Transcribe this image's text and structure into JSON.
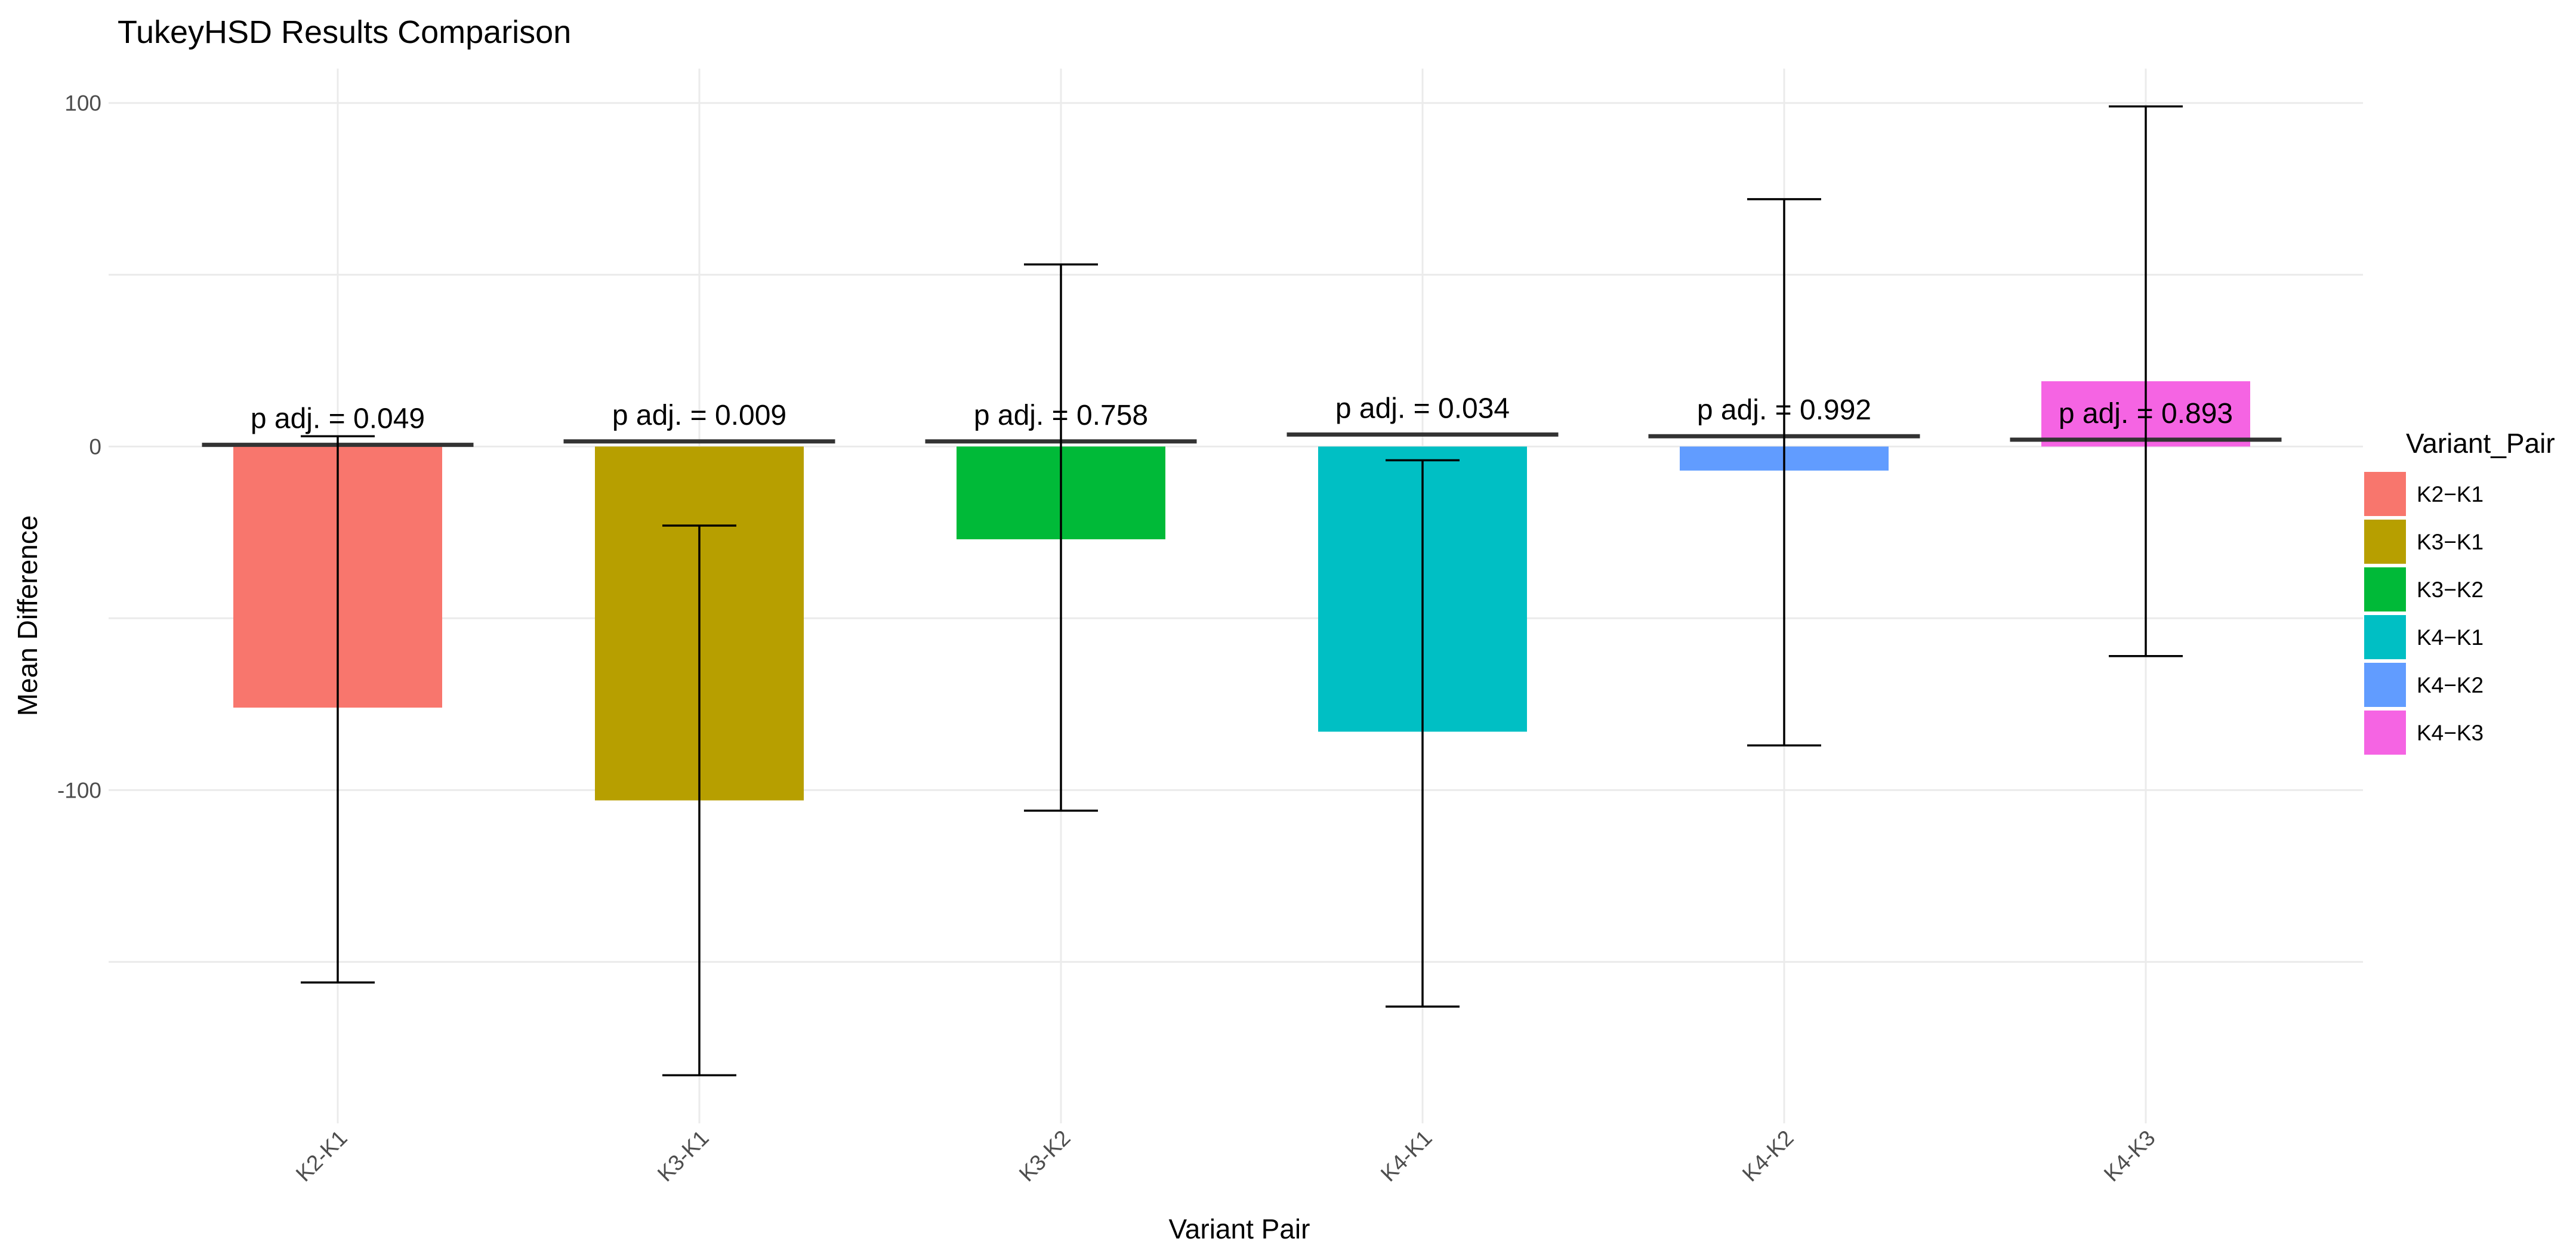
{
  "chart_data": {
    "type": "bar",
    "title": "TukeyHSD Results Comparison",
    "xlabel": "Variant Pair",
    "ylabel": "Mean Difference",
    "ylim": [
      -197,
      110
    ],
    "yticks": [
      100,
      0,
      -100
    ],
    "grid": true,
    "categories": [
      "K2-K1",
      "K3-K1",
      "K3-K2",
      "K4-K1",
      "K4-K2",
      "K4-K3"
    ],
    "values": [
      -76,
      -103,
      -27,
      -83,
      -7,
      19
    ],
    "colors": [
      "#F8766D",
      "#B79F00",
      "#00BA38",
      "#00BFC4",
      "#619CFF",
      "#F564E3"
    ],
    "error_bars": [
      {
        "upper": 3,
        "lower": -156
      },
      {
        "upper": -23,
        "lower": -183
      },
      {
        "upper": 53,
        "lower": -106
      },
      {
        "upper": -4,
        "lower": -163
      },
      {
        "upper": 72,
        "lower": -87
      },
      {
        "upper": 99,
        "lower": -61
      }
    ],
    "p_lines": [
      0.5,
      1.5,
      1.5,
      3.5,
      3,
      2
    ],
    "annotations": [
      "p adj. = 0.049",
      "p adj. = 0.009",
      "p adj. = 0.758",
      "p adj. = 0.034",
      "p adj. = 0.992",
      "p adj. = 0.893"
    ],
    "legend": {
      "title": "Variant_Pair",
      "position": "right",
      "entries": [
        "K2−K1",
        "K3−K1",
        "K3−K2",
        "K4−K1",
        "K4−K2",
        "K4−K3"
      ]
    }
  }
}
